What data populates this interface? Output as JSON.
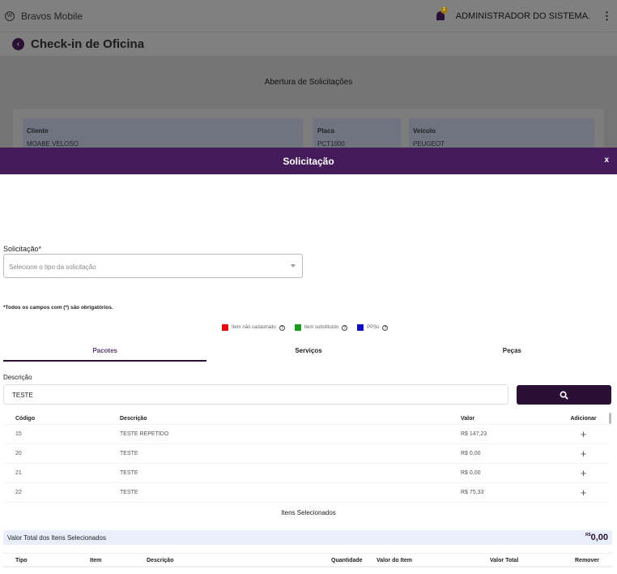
{
  "app": {
    "brand": "Bravos Mobile",
    "notifications": "1",
    "user": "ADMINISTRADOR DO SISTEMA."
  },
  "page": {
    "title": "Check-in de Oficina",
    "section": "Abertura de Solicitações",
    "fields": [
      {
        "label": "Cliente",
        "value": "MOABE VELOSO"
      },
      {
        "label": "Placa",
        "value": "PCT1000"
      },
      {
        "label": "Veículo",
        "value": "PEUGEOT"
      }
    ]
  },
  "modal": {
    "title": "Solicitação",
    "close": "x",
    "solicitacao_label": "Solicitação*",
    "solicitacao_placeholder": "Selecione o tipo da solicitação",
    "required_note": "*Todos os campos com (*) são obrigatórios.",
    "legend": [
      {
        "label": "Item não cadastrado",
        "color": "#e01010"
      },
      {
        "label": "Item substituído",
        "color": "#1a9a1a"
      },
      {
        "label": "PPSo",
        "color": "#1010c0"
      }
    ],
    "tabs": [
      "Pacotes",
      "Serviços",
      "Peças"
    ],
    "active_tab": "Pacotes",
    "descricao_label": "Descrição",
    "descricao_value": "TESTE",
    "table": {
      "headers": [
        "Código",
        "Descrição",
        "Valor",
        "Adicionar"
      ],
      "rows": [
        {
          "codigo": "15",
          "descricao": "TESTE REPETIDO",
          "valor": "R$ 147,23"
        },
        {
          "codigo": "20",
          "descricao": "TESTE",
          "valor": "R$ 0,00"
        },
        {
          "codigo": "21",
          "descricao": "TESTE",
          "valor": "R$ 0,00"
        },
        {
          "codigo": "22",
          "descricao": "TESTE",
          "valor": "R$ 75,33"
        }
      ]
    },
    "selected_title": "Itens Selecionados",
    "total_label": "Valor Total dos Itens Selecionados",
    "total_currency": "R$",
    "total_value": "0,00",
    "selected_headers": [
      "Tipo",
      "Item",
      "Descrição",
      "Quantidade",
      "Valor do Item",
      "Valor Total",
      "Remover"
    ]
  }
}
